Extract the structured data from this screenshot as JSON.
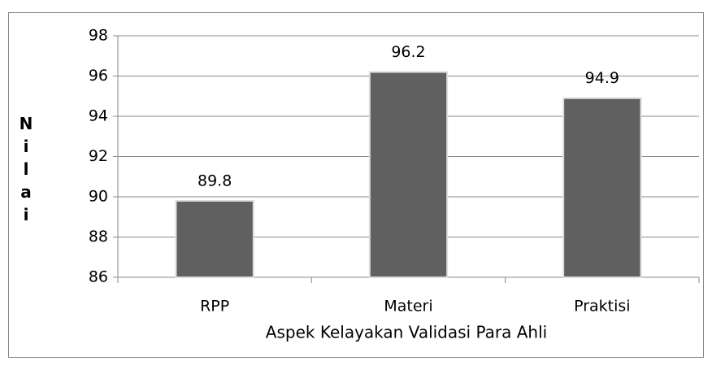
{
  "chart_data": {
    "type": "bar",
    "x_label": "Aspek Kelayakan Validasi Para Ahli",
    "y_label": "Nilai",
    "categories": [
      "RPP",
      "Materi",
      "Praktisi"
    ],
    "values": [
      89.8,
      96.2,
      94.9
    ],
    "color": "#606060",
    "ylim": [
      86,
      98
    ],
    "yticks": [
      86,
      88,
      90,
      92,
      94,
      96,
      98
    ],
    "grid": true
  }
}
